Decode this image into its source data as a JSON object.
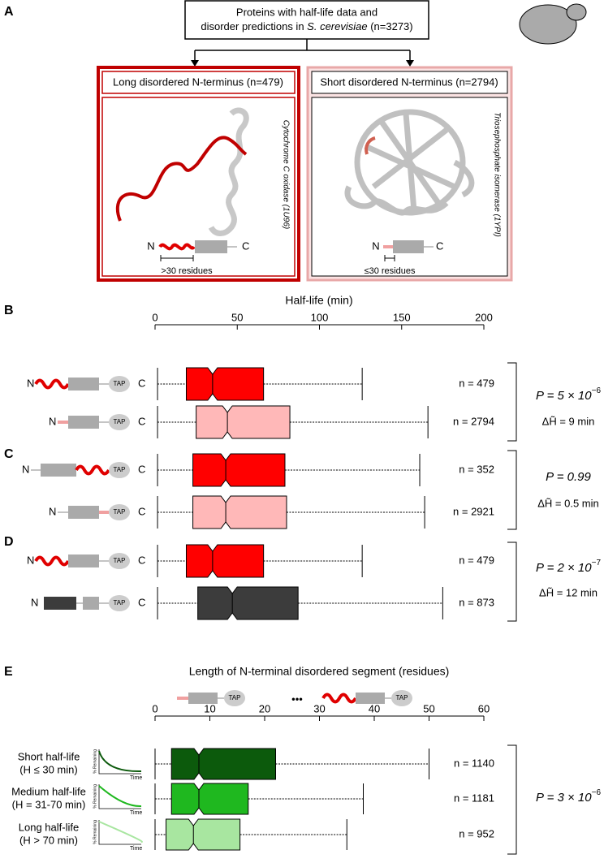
{
  "panel_letters": [
    "A",
    "B",
    "C",
    "D",
    "E"
  ],
  "panel_a": {
    "top_line1": "Proteins with half-life data and",
    "top_line2_pre": "disorder predictions in ",
    "top_line2_italic": "S. cerevisiae",
    "top_line2_post": " (n=3273)",
    "left_title": "Long disordered N-terminus (n=479)",
    "left_protein": "Cytochrome C oxidase (1U96)",
    "left_scale": ">30 residues",
    "right_title": "Short disordered N-terminus (n=2794)",
    "right_protein": "Triosephosphate isomerase (1YPI)",
    "right_scale": "≤30 residues"
  },
  "construct_labels": {
    "n": "N",
    "c": "C",
    "tap": "TAP",
    "dots": "•••",
    "remaining": "% Remaining",
    "time": "Time"
  },
  "chart_data": [
    {
      "type": "box",
      "panel": "B",
      "x_label": "Half-life (min)",
      "xlim": [
        0,
        200
      ],
      "xticks": [
        0,
        50,
        100,
        150,
        200
      ],
      "boxes": [
        {
          "label": "n = 479",
          "color": "#ff0000",
          "whislo": 1.5,
          "q1": 19,
          "med": 35,
          "q3": 66,
          "whishi": 126
        },
        {
          "label": "n = 2794",
          "color": "#ffb8b8",
          "whislo": 1.5,
          "q1": 25,
          "med": 44,
          "q3": 82,
          "whishi": 166
        }
      ],
      "p_text": "P = 5 × 10",
      "p_exp": "−6",
      "dh_text": "ΔH̃ = 9 min"
    },
    {
      "type": "box",
      "panel": "C",
      "boxes": [
        {
          "label": "n = 352",
          "color": "#ff0000",
          "whislo": 1.5,
          "q1": 23,
          "med": 43,
          "q3": 79,
          "whishi": 161
        },
        {
          "label": "n = 2921",
          "color": "#ffb8b8",
          "whislo": 1.5,
          "q1": 23,
          "med": 43,
          "q3": 80,
          "whishi": 164
        }
      ],
      "p_text": "P = 0.99",
      "dh_text": "ΔH̃ = 0.5 min"
    },
    {
      "type": "box",
      "panel": "D",
      "boxes": [
        {
          "label": "n = 479",
          "color": "#ff0000",
          "whislo": 1.5,
          "q1": 19,
          "med": 35,
          "q3": 66,
          "whishi": 126
        },
        {
          "label": "n = 873",
          "color": "#3c3c3c",
          "whislo": 1.5,
          "q1": 26,
          "med": 47,
          "q3": 87,
          "whishi": 175
        }
      ],
      "p_text": "P = 2 × 10",
      "p_exp": "−7",
      "dh_text": "ΔH̃ = 12 min"
    },
    {
      "type": "box",
      "panel": "E",
      "x_label": "Length of N-terminal disordered segment (residues)",
      "xlim": [
        0,
        60
      ],
      "xticks": [
        0,
        10,
        20,
        30,
        40,
        50,
        60
      ],
      "boxes": [
        {
          "label": "n = 1140",
          "color": "#0c5a0c",
          "group": [
            "Short half-life",
            "(H ≤ 30 min)"
          ],
          "whislo": 0,
          "q1": 3,
          "med": 8,
          "q3": 22,
          "whishi": 50
        },
        {
          "label": "n = 1181",
          "color": "#1fb81f",
          "group": [
            "Medium half-life",
            "(H = 31-70 min)"
          ],
          "whislo": 0,
          "q1": 3,
          "med": 8,
          "q3": 17,
          "whishi": 38
        },
        {
          "label": "n = 952",
          "color": "#a8e6a0",
          "group": [
            "Long half-life",
            "(H > 70 min)"
          ],
          "whislo": 0,
          "q1": 2,
          "med": 7,
          "q3": 15.5,
          "whishi": 35
        }
      ],
      "p_text": "P = 3 × 10",
      "p_exp": "−6"
    }
  ]
}
